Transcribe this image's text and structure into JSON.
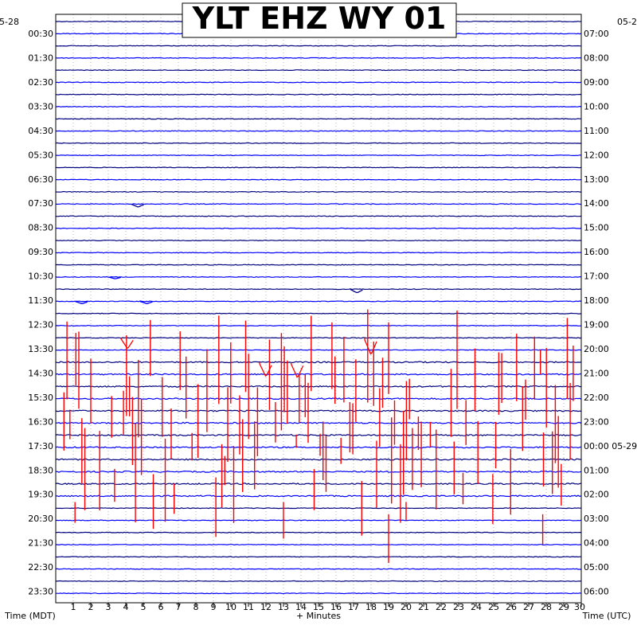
{
  "chart_data": {
    "type": "line",
    "title": "YLT EHZ WY 01",
    "left_date": "05-28",
    "right_date": "05-2",
    "right_date_change": "05-29",
    "xlabel": "+ Minutes",
    "left_axis_label": "Time (MDT)",
    "right_axis_label": "Time (UTC)",
    "xlim": [
      0,
      30
    ],
    "x_ticks": [
      "1",
      "2",
      "3",
      "4",
      "5",
      "6",
      "7",
      "8",
      "9",
      "10",
      "11",
      "12",
      "13",
      "14",
      "15",
      "16",
      "17",
      "18",
      "19",
      "20",
      "21",
      "22",
      "23",
      "24",
      "25",
      "26",
      "27",
      "28",
      "29",
      "30"
    ],
    "rows_per_hour": 2,
    "row_minutes": 30,
    "row_count": 48,
    "trace_colors": [
      "#000080",
      "#0000ff",
      "#000080",
      "#0000ff"
    ],
    "signal_color": "#ff0000",
    "grid": "dotted",
    "left_labels": [
      "00:30",
      "01:30",
      "02:30",
      "03:30",
      "04:30",
      "05:30",
      "06:30",
      "07:30",
      "08:30",
      "09:30",
      "10:30",
      "11:30",
      "12:30",
      "13:30",
      "14:30",
      "15:30",
      "16:30",
      "17:30",
      "18:30",
      "19:30",
      "20:30",
      "21:30",
      "22:30",
      "23:30"
    ],
    "right_labels": [
      "07:00",
      "08:00",
      "09:00",
      "10:00",
      "11:00",
      "12:00",
      "13:00",
      "14:00",
      "15:00",
      "16:00",
      "17:00",
      "18:00",
      "19:00",
      "20:00",
      "21:00",
      "22:00",
      "23:00",
      "00:00",
      "01:00",
      "02:00",
      "03:00",
      "04:00",
      "05:00",
      "06:00"
    ],
    "events": [
      {
        "row": 15,
        "minute": 4.7,
        "amplitude": 0.25,
        "color": "#000080"
      },
      {
        "row": 21,
        "minute": 3.4,
        "amplitude": 0.15,
        "color": "#0000ff"
      },
      {
        "row": 22,
        "minute": 17.2,
        "amplitude": 0.3,
        "color": "#000080"
      },
      {
        "row": 23,
        "minute": 1.5,
        "amplitude": 0.2,
        "color": "#0000ff"
      },
      {
        "row": 23,
        "minute": 5.2,
        "amplitude": 0.2,
        "color": "#0000ff"
      },
      {
        "row": 26,
        "minute": 18.0,
        "amplitude": 1.4,
        "color": "#ff0000"
      },
      {
        "row": 26,
        "minute": 4.1,
        "amplitude": 0.9,
        "color": "#ff0000"
      },
      {
        "row": 28,
        "minute": 12.0,
        "amplitude": 1.2,
        "color": "#ff0000"
      },
      {
        "row": 28,
        "minute": 13.8,
        "amplitude": 1.3,
        "color": "#ff0000"
      }
    ],
    "noise_band_rows": [
      28,
      39
    ],
    "noise_band_minutes": [
      0.3,
      29.7
    ],
    "mass_spike_density": 0.55,
    "late_spikes": [
      {
        "row": 40,
        "minute": 13.0,
        "depth": 2.5
      },
      {
        "row": 41,
        "minute": 19.0,
        "depth": 3.5
      },
      {
        "row": 41,
        "minute": 27.8,
        "depth": 2.0
      },
      {
        "row": 40,
        "minute": 1.1,
        "depth": 1.2
      },
      {
        "row": 40,
        "minute": 20.0,
        "depth": 1.0
      }
    ]
  }
}
